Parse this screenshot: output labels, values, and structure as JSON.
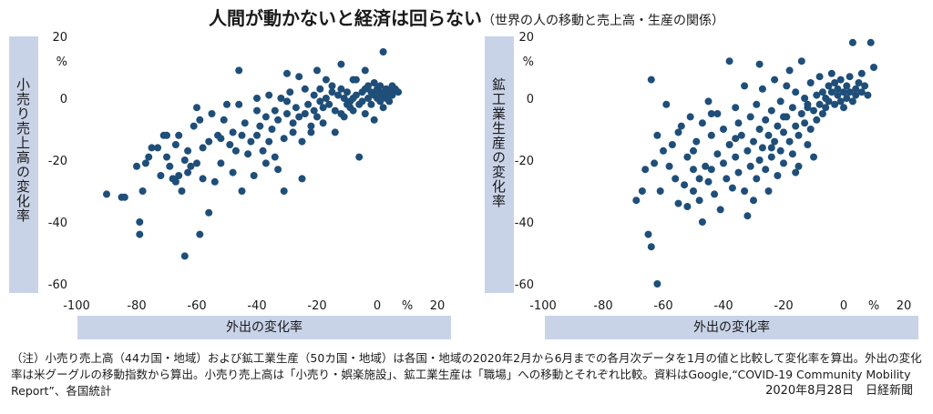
{
  "title": "人間が動かないと経済は回らない",
  "subtitle": "（世界の人の移動と売上高・生産の関係）",
  "footer": {
    "note": "（注）小売り売上高（44カ国・地域）および鉱工業生産（50カ国・地域）は各国・地域の2020年2月から6月までの各月次データを1月の値と比較して変化率を算出。外出の変化率は米グーグルの移動指数から算出。小売り売上高は「小売り・娯楽施設」、鉱工業生産は「職場」への移動とそれぞれ比較。資料はGoogle,“COVID-19 Community Mobility Report”、各国統計",
    "credit": "2020年8月28日　日経新聞"
  },
  "colors": {
    "dot": "#1f4e79",
    "label_band": "#c9d3e8"
  },
  "chart_data": [
    {
      "type": "scatter",
      "xlabel": "外出の変化率",
      "ylabel": "小売り売上高の変化率",
      "xlim": [
        -100,
        20
      ],
      "ylim": [
        -60,
        20
      ],
      "x_ticks": [
        -100,
        -80,
        -60,
        -40,
        -20,
        0,
        20
      ],
      "y_ticks": [
        20,
        0,
        -20,
        -40,
        -60
      ],
      "x_unit": "%",
      "y_unit": "%",
      "points": [
        [
          -90,
          -31
        ],
        [
          -85,
          -32
        ],
        [
          -84,
          -32
        ],
        [
          -80,
          -22
        ],
        [
          -79,
          -40
        ],
        [
          -79,
          -44
        ],
        [
          -78,
          -30
        ],
        [
          -77,
          -21
        ],
        [
          -76,
          -19
        ],
        [
          -75,
          -16
        ],
        [
          -73,
          -16
        ],
        [
          -72,
          -25
        ],
        [
          -71,
          -12
        ],
        [
          -70,
          -19
        ],
        [
          -70,
          -12
        ],
        [
          -69,
          -22
        ],
        [
          -68,
          -26
        ],
        [
          -67,
          -15
        ],
        [
          -67,
          -27
        ],
        [
          -66,
          -25
        ],
        [
          -66,
          -12
        ],
        [
          -65,
          -30
        ],
        [
          -64,
          -51
        ],
        [
          -64,
          -20
        ],
        [
          -63,
          -17
        ],
        [
          -63,
          -24
        ],
        [
          -62,
          -22
        ],
        [
          -61,
          -9
        ],
        [
          -60,
          -21
        ],
        [
          -59,
          -44
        ],
        [
          -59,
          -7
        ],
        [
          -58,
          -16
        ],
        [
          -58,
          -26
        ],
        [
          -56,
          -37
        ],
        [
          -56,
          -14
        ],
        [
          -55,
          -5
        ],
        [
          -54,
          -27
        ],
        [
          -53,
          -12
        ],
        [
          -52,
          -13
        ],
        [
          -52,
          -21
        ],
        [
          -51,
          -7
        ],
        [
          -50,
          -2
        ],
        [
          -49,
          -15
        ],
        [
          -48,
          -11
        ],
        [
          -48,
          -24
        ],
        [
          -47,
          -17
        ],
        [
          -46,
          -2
        ],
        [
          -45,
          -12
        ],
        [
          -45,
          -30
        ],
        [
          -44,
          -8
        ],
        [
          -43,
          -18
        ],
        [
          -42,
          -14
        ],
        [
          -41,
          -25
        ],
        [
          -40,
          -12
        ],
        [
          -40,
          -4
        ],
        [
          -39,
          -9
        ],
        [
          -38,
          -17
        ],
        [
          -37,
          -21
        ],
        [
          -37,
          -6
        ],
        [
          -36,
          1
        ],
        [
          -36,
          -14
        ],
        [
          -35,
          -10
        ],
        [
          -34,
          -19
        ],
        [
          -34,
          -4
        ],
        [
          -33,
          -7
        ],
        [
          -33,
          -23
        ],
        [
          -32,
          0
        ],
        [
          -31,
          -13
        ],
        [
          -31,
          -30
        ],
        [
          -30,
          -5
        ],
        [
          -30,
          -1
        ],
        [
          -29,
          2
        ],
        [
          -28,
          -8
        ],
        [
          -28,
          -11
        ],
        [
          -27,
          -3
        ],
        [
          -26,
          -6
        ],
        [
          -25,
          -26
        ],
        [
          -25,
          -14
        ],
        [
          -24,
          -5
        ],
        [
          -24,
          3
        ],
        [
          -23,
          -2
        ],
        [
          -22,
          -9
        ],
        [
          -22,
          -11
        ],
        [
          -21,
          -4
        ],
        [
          -21,
          1
        ],
        [
          -20,
          -6
        ],
        [
          -19,
          -1
        ],
        [
          -19,
          3
        ],
        [
          -18,
          -3
        ],
        [
          -18,
          -8
        ],
        [
          -17,
          0
        ],
        [
          -17,
          6
        ],
        [
          -16,
          -2
        ],
        [
          -15,
          2
        ],
        [
          -15,
          4
        ],
        [
          -14,
          -4
        ],
        [
          -14,
          -11
        ],
        [
          -13,
          1
        ],
        [
          -12,
          -5
        ],
        [
          -12,
          3
        ],
        [
          -11,
          0
        ],
        [
          -11,
          -6
        ],
        [
          -10,
          -2
        ],
        [
          -10,
          2
        ],
        [
          -9,
          -3
        ],
        [
          -9,
          -1
        ],
        [
          -8,
          0
        ],
        [
          -8,
          -4
        ],
        [
          -7,
          1
        ],
        [
          -7,
          6
        ],
        [
          -6,
          -2
        ],
        [
          -6,
          -19
        ],
        [
          -5,
          2
        ],
        [
          -5,
          -1
        ],
        [
          -4,
          3
        ],
        [
          -4,
          -5
        ],
        [
          -3,
          0
        ],
        [
          -3,
          4
        ],
        [
          -2,
          -2
        ],
        [
          -2,
          2
        ],
        [
          -1,
          1
        ],
        [
          -1,
          5
        ],
        [
          -1,
          -7
        ],
        [
          0,
          0
        ],
        [
          0,
          3
        ],
        [
          1,
          -1
        ],
        [
          1,
          4
        ],
        [
          1,
          2
        ],
        [
          2,
          15
        ],
        [
          2,
          1
        ],
        [
          2,
          -3
        ],
        [
          3,
          3
        ],
        [
          3,
          0
        ],
        [
          4,
          2
        ],
        [
          4,
          -1
        ],
        [
          5,
          4
        ],
        [
          5,
          1
        ],
        [
          6,
          3
        ],
        [
          7,
          2
        ],
        [
          -12,
          11
        ],
        [
          -4,
          9
        ],
        [
          -8,
          6
        ],
        [
          -26,
          7
        ],
        [
          -20,
          9
        ],
        [
          -30,
          8
        ],
        [
          -40,
          0
        ],
        [
          -46,
          9
        ],
        [
          -60,
          -3
        ]
      ]
    },
    {
      "type": "scatter",
      "xlabel": "外出の変化率",
      "ylabel": "鉱工業生産の変化率",
      "xlim": [
        -100,
        20
      ],
      "ylim": [
        -60,
        20
      ],
      "x_ticks": [
        -100,
        -80,
        -60,
        -40,
        -20,
        0,
        20
      ],
      "y_ticks": [
        20,
        0,
        -20,
        -40,
        -60
      ],
      "x_unit": "%",
      "y_unit": "%",
      "points": [
        [
          -69,
          -33
        ],
        [
          -67,
          -30
        ],
        [
          -66,
          -23
        ],
        [
          -65,
          -44
        ],
        [
          -64,
          6
        ],
        [
          -64,
          -48
        ],
        [
          -63,
          -21
        ],
        [
          -62,
          -60
        ],
        [
          -62,
          -12
        ],
        [
          -61,
          -30
        ],
        [
          -60,
          -17
        ],
        [
          -59,
          -2
        ],
        [
          -58,
          -22
        ],
        [
          -57,
          -15
        ],
        [
          -56,
          -26
        ],
        [
          -55,
          -11
        ],
        [
          -55,
          -34
        ],
        [
          -54,
          -9
        ],
        [
          -53,
          -28
        ],
        [
          -52,
          -19
        ],
        [
          -52,
          -35
        ],
        [
          -51,
          -6
        ],
        [
          -50,
          -23
        ],
        [
          -50,
          -30
        ],
        [
          -49,
          -14
        ],
        [
          -48,
          -33
        ],
        [
          -47,
          -8
        ],
        [
          -47,
          -40
        ],
        [
          -46,
          -22
        ],
        [
          -45,
          -27
        ],
        [
          -45,
          -1
        ],
        [
          -44,
          -12
        ],
        [
          -43,
          -31
        ],
        [
          -42,
          -18
        ],
        [
          -42,
          -5
        ],
        [
          -41,
          -36
        ],
        [
          -40,
          -21
        ],
        [
          -40,
          -10
        ],
        [
          -39,
          -26
        ],
        [
          -38,
          -15
        ],
        [
          -38,
          12
        ],
        [
          -37,
          -29
        ],
        [
          -36,
          -3
        ],
        [
          -36,
          -19
        ],
        [
          -35,
          -8
        ],
        [
          -35,
          -24
        ],
        [
          -34,
          -12
        ],
        [
          -33,
          4
        ],
        [
          -33,
          -30
        ],
        [
          -32,
          -17
        ],
        [
          -31,
          -6
        ],
        [
          -31,
          -22
        ],
        [
          -30,
          -14
        ],
        [
          -30,
          -33
        ],
        [
          -29,
          -2
        ],
        [
          -29,
          -26
        ],
        [
          -28,
          -10
        ],
        [
          -28,
          -20
        ],
        [
          -27,
          3
        ],
        [
          -27,
          -16
        ],
        [
          -26,
          -7
        ],
        [
          -26,
          -23
        ],
        [
          -25,
          -12
        ],
        [
          -25,
          -30
        ],
        [
          -24,
          -4
        ],
        [
          -24,
          -19
        ],
        [
          -23,
          -14
        ],
        [
          -23,
          6
        ],
        [
          -22,
          -9
        ],
        [
          -22,
          -25
        ],
        [
          -21,
          -1
        ],
        [
          -21,
          -17
        ],
        [
          -20,
          -11
        ],
        [
          -20,
          -21
        ],
        [
          -19,
          4
        ],
        [
          -19,
          -6
        ],
        [
          -18,
          -14
        ],
        [
          -18,
          9
        ],
        [
          -17,
          -3
        ],
        [
          -17,
          -18
        ],
        [
          -16,
          -9
        ],
        [
          -16,
          2
        ],
        [
          -15,
          -12
        ],
        [
          -15,
          -22
        ],
        [
          -14,
          -5
        ],
        [
          -14,
          12
        ],
        [
          -13,
          -8
        ],
        [
          -13,
          0
        ],
        [
          -12,
          -15
        ],
        [
          -12,
          -3
        ],
        [
          -11,
          5
        ],
        [
          -11,
          -10
        ],
        [
          -10,
          -4
        ],
        [
          -10,
          -19
        ],
        [
          -9,
          1
        ],
        [
          -9,
          -7
        ],
        [
          -8,
          -2
        ],
        [
          -8,
          7
        ],
        [
          -7,
          -5
        ],
        [
          -7,
          2
        ],
        [
          -6,
          0
        ],
        [
          -6,
          -3
        ],
        [
          -5,
          4
        ],
        [
          -5,
          -1
        ],
        [
          -4,
          8
        ],
        [
          -4,
          2
        ],
        [
          -3,
          -2
        ],
        [
          -3,
          5
        ],
        [
          -2,
          1
        ],
        [
          -2,
          3
        ],
        [
          -1,
          -1
        ],
        [
          -1,
          6
        ],
        [
          0,
          2
        ],
        [
          0,
          -3
        ],
        [
          1,
          4
        ],
        [
          1,
          0
        ],
        [
          2,
          7
        ],
        [
          2,
          2
        ],
        [
          3,
          18
        ],
        [
          3,
          -1
        ],
        [
          4,
          3
        ],
        [
          4,
          1
        ],
        [
          5,
          5
        ],
        [
          6,
          8
        ],
        [
          6,
          2
        ],
        [
          7,
          4
        ],
        [
          8,
          1
        ],
        [
          9,
          18
        ],
        [
          10,
          10
        ],
        [
          -28,
          11
        ],
        [
          -36,
          -13
        ],
        [
          -44,
          -23
        ],
        [
          -48,
          -26
        ],
        [
          -32,
          -38
        ],
        [
          -24,
          -16
        ],
        [
          -20,
          -6
        ],
        [
          -16,
          -24
        ],
        [
          -12,
          -2
        ],
        [
          -44,
          -5
        ],
        [
          -50,
          -17
        ]
      ]
    }
  ]
}
